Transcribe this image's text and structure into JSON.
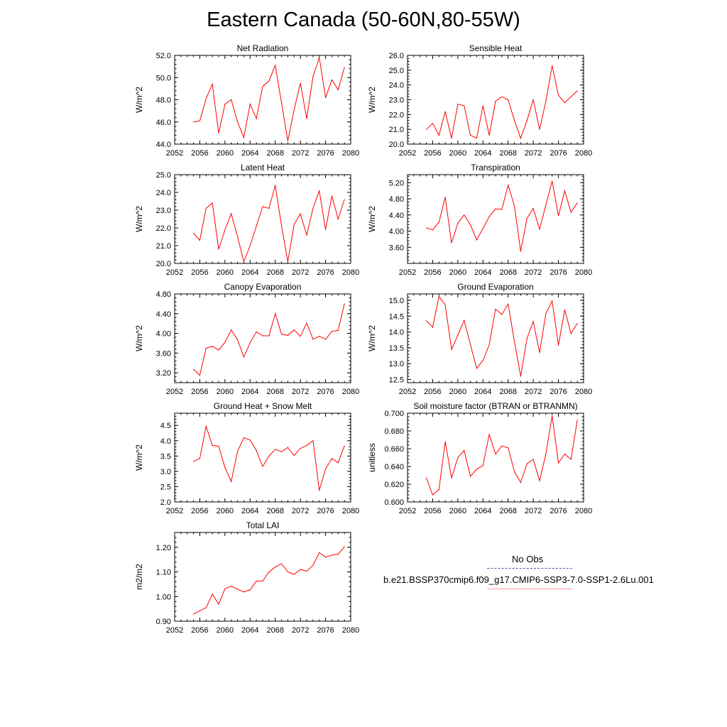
{
  "figure": {
    "title": "Eastern Canada (50-60N,80-55W)"
  },
  "legend": {
    "entries": [
      {
        "label": "No Obs",
        "style": "dashed",
        "color": "#5555aa"
      },
      {
        "label": "b.e21.BSSP370cmip6.f09_g17.CMIP6-SSP3-7.0-SSP1-2.6Lu.001",
        "style": "solid",
        "color": "#ff0000"
      }
    ]
  },
  "chart_data": [
    {
      "type": "line",
      "title": "Net Radiation",
      "xlabel": "",
      "ylabel": "W/m^2",
      "xlim": [
        2052,
        2080
      ],
      "ylim": [
        44,
        52
      ],
      "xticks": [
        "2052",
        "2056",
        "2060",
        "2064",
        "2068",
        "2072",
        "2076",
        "2080"
      ],
      "yticks": [
        "44.0",
        "46.0",
        "48.0",
        "50.0",
        "52.0"
      ],
      "series": [
        {
          "color": "#ff0000",
          "x": [
            2055,
            2056,
            2057,
            2058,
            2059,
            2060,
            2061,
            2062,
            2063,
            2064,
            2065,
            2066,
            2067,
            2068,
            2069,
            2070,
            2071,
            2072,
            2073,
            2074,
            2075,
            2076,
            2077,
            2078,
            2079
          ],
          "y": [
            46.0,
            46.1,
            48.1,
            49.4,
            45.0,
            47.6,
            48.0,
            46.0,
            44.6,
            47.6,
            46.3,
            49.2,
            49.7,
            51.1,
            47.7,
            44.3,
            47.1,
            49.5,
            46.3,
            50.1,
            51.8,
            48.2,
            49.8,
            48.9,
            50.9
          ]
        }
      ]
    },
    {
      "type": "line",
      "title": "Sensible Heat",
      "xlabel": "",
      "ylabel": "W/m^2",
      "xlim": [
        2052,
        2080
      ],
      "ylim": [
        20,
        26
      ],
      "xticks": [
        "2052",
        "2056",
        "2060",
        "2064",
        "2068",
        "2072",
        "2076",
        "2080"
      ],
      "yticks": [
        "20.0",
        "21.0",
        "22.0",
        "23.0",
        "24.0",
        "25.0",
        "26.0"
      ],
      "series": [
        {
          "color": "#ff0000",
          "x": [
            2055,
            2056,
            2057,
            2058,
            2059,
            2060,
            2061,
            2062,
            2063,
            2064,
            2065,
            2066,
            2067,
            2068,
            2069,
            2070,
            2071,
            2072,
            2073,
            2074,
            2075,
            2076,
            2077,
            2078,
            2079
          ],
          "y": [
            21.0,
            21.4,
            20.6,
            22.2,
            20.4,
            22.7,
            22.6,
            20.6,
            20.4,
            22.6,
            20.6,
            22.9,
            23.2,
            23.0,
            21.6,
            20.4,
            21.6,
            23.0,
            21.0,
            22.9,
            25.3,
            23.3,
            22.8,
            23.2,
            23.6
          ]
        }
      ]
    },
    {
      "type": "line",
      "title": "Latent Heat",
      "xlabel": "",
      "ylabel": "W/m^2",
      "xlim": [
        2052,
        2080
      ],
      "ylim": [
        20,
        25
      ],
      "xticks": [
        "2052",
        "2056",
        "2060",
        "2064",
        "2068",
        "2072",
        "2076",
        "2080"
      ],
      "yticks": [
        "20.0",
        "21.0",
        "22.0",
        "23.0",
        "24.0",
        "25.0"
      ],
      "series": [
        {
          "color": "#ff0000",
          "x": [
            2055,
            2056,
            2057,
            2058,
            2059,
            2060,
            2061,
            2062,
            2063,
            2064,
            2065,
            2066,
            2067,
            2068,
            2069,
            2070,
            2071,
            2072,
            2073,
            2074,
            2075,
            2076,
            2077,
            2078,
            2079
          ],
          "y": [
            21.7,
            21.3,
            23.1,
            23.4,
            20.8,
            21.9,
            22.8,
            21.5,
            20.1,
            21.0,
            22.1,
            23.2,
            23.1,
            24.4,
            22.1,
            20.1,
            22.2,
            22.8,
            21.6,
            23.1,
            24.1,
            21.9,
            23.8,
            22.5,
            23.6
          ]
        }
      ]
    },
    {
      "type": "line",
      "title": "Transpiration",
      "xlabel": "",
      "ylabel": "W/m^2",
      "xlim": [
        2052,
        2080
      ],
      "ylim": [
        3.2,
        5.4
      ],
      "xticks": [
        "2052",
        "2056",
        "2060",
        "2064",
        "2068",
        "2072",
        "2076",
        "2080"
      ],
      "yticks": [
        "3.60",
        "4.00",
        "4.40",
        "4.80",
        "5.20"
      ],
      "series": [
        {
          "color": "#ff0000",
          "x": [
            2055,
            2056,
            2057,
            2058,
            2059,
            2060,
            2061,
            2062,
            2063,
            2064,
            2065,
            2066,
            2067,
            2068,
            2069,
            2070,
            2071,
            2072,
            2073,
            2074,
            2075,
            2076,
            2077,
            2078,
            2079
          ],
          "y": [
            4.08,
            4.03,
            4.22,
            4.84,
            3.71,
            4.2,
            4.4,
            4.16,
            3.78,
            4.07,
            4.36,
            4.55,
            4.54,
            5.14,
            4.62,
            3.5,
            4.32,
            4.56,
            4.05,
            4.65,
            5.24,
            4.38,
            5.0,
            4.47,
            4.7
          ]
        }
      ]
    },
    {
      "type": "line",
      "title": "Canopy Evaporation",
      "xlabel": "",
      "ylabel": "W/m^2",
      "xlim": [
        2052,
        2080
      ],
      "ylim": [
        3.0,
        4.8
      ],
      "xticks": [
        "2052",
        "2056",
        "2060",
        "2064",
        "2068",
        "2072",
        "2076",
        "2080"
      ],
      "yticks": [
        "3.20",
        "3.60",
        "4.00",
        "4.40",
        "4.80"
      ],
      "series": [
        {
          "color": "#ff0000",
          "x": [
            2055,
            2056,
            2057,
            2058,
            2059,
            2060,
            2061,
            2062,
            2063,
            2064,
            2065,
            2066,
            2067,
            2068,
            2069,
            2070,
            2071,
            2072,
            2073,
            2074,
            2075,
            2076,
            2077,
            2078,
            2079
          ],
          "y": [
            3.27,
            3.15,
            3.7,
            3.74,
            3.66,
            3.82,
            4.07,
            3.87,
            3.52,
            3.81,
            4.03,
            3.95,
            3.95,
            4.4,
            3.98,
            3.96,
            4.07,
            3.94,
            4.21,
            3.88,
            3.94,
            3.88,
            4.04,
            4.06,
            4.6
          ]
        }
      ]
    },
    {
      "type": "line",
      "title": "Ground Evaporation",
      "xlabel": "",
      "ylabel": "W/m^2",
      "xlim": [
        2052,
        2080
      ],
      "ylim": [
        12.4,
        15.2
      ],
      "xticks": [
        "2052",
        "2056",
        "2060",
        "2064",
        "2068",
        "2072",
        "2076",
        "2080"
      ],
      "yticks": [
        "12.5",
        "13.0",
        "13.5",
        "14.0",
        "14.5",
        "15.0"
      ],
      "series": [
        {
          "color": "#ff0000",
          "x": [
            2055,
            2056,
            2057,
            2058,
            2059,
            2060,
            2061,
            2062,
            2063,
            2064,
            2065,
            2066,
            2067,
            2068,
            2069,
            2070,
            2071,
            2072,
            2073,
            2074,
            2075,
            2076,
            2077,
            2078,
            2079
          ],
          "y": [
            14.35,
            14.15,
            15.12,
            14.85,
            13.45,
            13.9,
            14.37,
            13.6,
            12.85,
            13.1,
            13.6,
            14.72,
            14.55,
            14.88,
            13.7,
            12.6,
            13.8,
            14.33,
            13.35,
            14.58,
            14.98,
            13.58,
            14.7,
            13.95,
            14.27
          ]
        }
      ]
    },
    {
      "type": "line",
      "title": "Ground Heat + Snow Melt",
      "xlabel": "",
      "ylabel": "W/m^2",
      "xlim": [
        2052,
        2080
      ],
      "ylim": [
        2.0,
        4.9
      ],
      "xticks": [
        "2052",
        "2056",
        "2060",
        "2064",
        "2068",
        "2072",
        "2076",
        "2080"
      ],
      "yticks": [
        "2.0",
        "2.5",
        "3.0",
        "3.5",
        "4.0",
        "4.5"
      ],
      "series": [
        {
          "color": "#ff0000",
          "x": [
            2055,
            2056,
            2057,
            2058,
            2059,
            2060,
            2061,
            2062,
            2063,
            2064,
            2065,
            2066,
            2067,
            2068,
            2069,
            2070,
            2071,
            2072,
            2073,
            2074,
            2075,
            2076,
            2077,
            2078,
            2079
          ],
          "y": [
            3.32,
            3.42,
            4.47,
            3.85,
            3.82,
            3.12,
            2.67,
            3.65,
            4.1,
            4.02,
            3.68,
            3.16,
            3.5,
            3.72,
            3.64,
            3.78,
            3.52,
            3.75,
            3.85,
            4.0,
            2.38,
            3.08,
            3.42,
            3.28,
            3.83
          ]
        }
      ]
    },
    {
      "type": "line",
      "title": "Soil moisture factor (BTRAN or BTRANMN)",
      "xlabel": "",
      "ylabel": "unitless",
      "xlim": [
        2052,
        2080
      ],
      "ylim": [
        0.6,
        0.7
      ],
      "xticks": [
        "2052",
        "2056",
        "2060",
        "2064",
        "2068",
        "2072",
        "2076",
        "2080"
      ],
      "yticks": [
        "0.600",
        "0.620",
        "0.640",
        "0.660",
        "0.680",
        "0.700"
      ],
      "series": [
        {
          "color": "#ff0000",
          "x": [
            2055,
            2056,
            2057,
            2058,
            2059,
            2060,
            2061,
            2062,
            2063,
            2064,
            2065,
            2066,
            2067,
            2068,
            2069,
            2070,
            2071,
            2072,
            2073,
            2074,
            2075,
            2076,
            2077,
            2078,
            2079
          ],
          "y": [
            0.627,
            0.608,
            0.614,
            0.668,
            0.627,
            0.65,
            0.658,
            0.629,
            0.637,
            0.641,
            0.676,
            0.654,
            0.663,
            0.661,
            0.634,
            0.622,
            0.643,
            0.648,
            0.624,
            0.654,
            0.697,
            0.644,
            0.654,
            0.648,
            0.692
          ]
        }
      ]
    },
    {
      "type": "line",
      "title": "Total LAI",
      "xlabel": "",
      "ylabel": "m2/m2",
      "xlim": [
        2052,
        2080
      ],
      "ylim": [
        0.9,
        1.26
      ],
      "xticks": [
        "2052",
        "2056",
        "2060",
        "2064",
        "2068",
        "2072",
        "2076",
        "2080"
      ],
      "yticks": [
        "0.90",
        "1.00",
        "1.10",
        "1.20"
      ],
      "series": [
        {
          "color": "#ff0000",
          "x": [
            2055,
            2056,
            2057,
            2058,
            2059,
            2060,
            2061,
            2062,
            2063,
            2064,
            2065,
            2066,
            2067,
            2068,
            2069,
            2070,
            2071,
            2072,
            2073,
            2074,
            2075,
            2076,
            2077,
            2078,
            2079
          ],
          "y": [
            0.929,
            0.942,
            0.955,
            1.01,
            0.969,
            1.032,
            1.042,
            1.03,
            1.019,
            1.027,
            1.063,
            1.063,
            1.1,
            1.12,
            1.133,
            1.1,
            1.09,
            1.11,
            1.103,
            1.127,
            1.178,
            1.16,
            1.168,
            1.172,
            1.202
          ]
        }
      ]
    }
  ]
}
